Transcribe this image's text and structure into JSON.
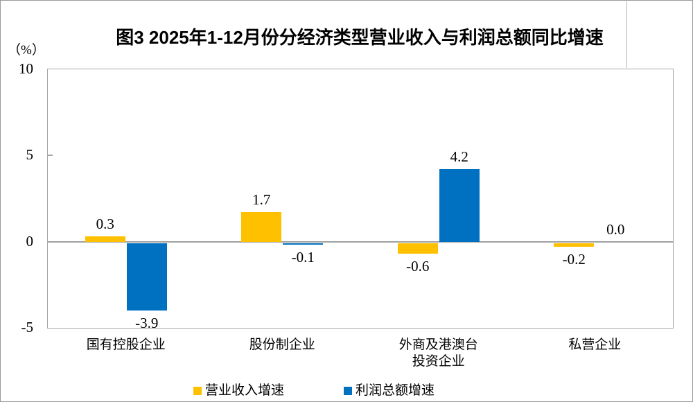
{
  "title": "图3  2025年1-12月份分经济类型营业收入与利润总额同比增速",
  "y_axis_unit": "（%）",
  "chart_data": {
    "type": "bar",
    "categories": [
      "国有控股企业",
      "股份制企业",
      "外商及港澳台\n投资企业",
      "私营企业"
    ],
    "series": [
      {
        "name": "营业收入增速",
        "color": "#FFC000",
        "values": [
          0.3,
          1.7,
          -0.6,
          -0.2
        ]
      },
      {
        "name": "利润总额增速",
        "color": "#0070C0",
        "values": [
          -3.9,
          -0.1,
          4.2,
          0.0
        ]
      }
    ],
    "xlabel": "",
    "ylabel": "（%）",
    "ylim": [
      -5,
      10
    ],
    "yticks": [
      10,
      5,
      0,
      -5
    ],
    "grid": false,
    "legend_position": "bottom",
    "value_label_decimals": 1
  }
}
